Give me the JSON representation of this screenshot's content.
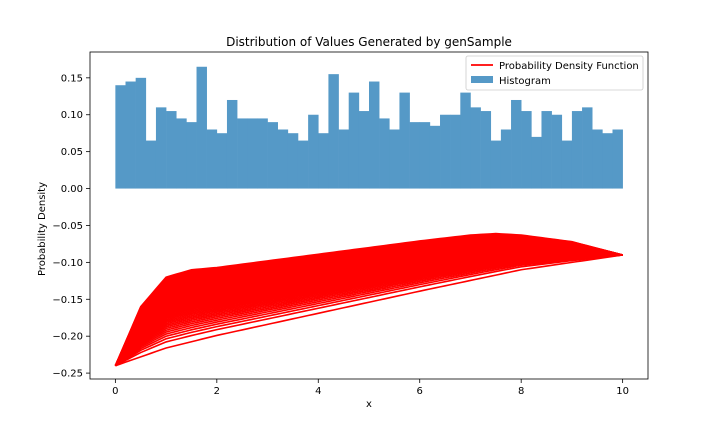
{
  "chart_data": {
    "type": "bar",
    "title": "Distribution of Values Generated by genSample",
    "xlabel": "x",
    "ylabel": "Probability Density",
    "xlim": [
      -0.5,
      10.5
    ],
    "ylim": [
      -0.258,
      0.185
    ],
    "xticks": [
      0,
      2,
      4,
      6,
      8,
      10
    ],
    "xtick_labels": [
      "0",
      "2",
      "4",
      "6",
      "8",
      "10"
    ],
    "yticks": [
      0.15,
      0.1,
      0.05,
      0.0,
      -0.05,
      -0.1,
      -0.15,
      -0.2,
      -0.25
    ],
    "ytick_labels": [
      "0.15",
      "0.10",
      "0.05",
      "0.00",
      "−0.05",
      "−0.10",
      "−0.15",
      "−0.20",
      "−0.25"
    ],
    "grid": false,
    "legend_position": "top-right",
    "legend": [
      {
        "label": "Probability Density Function",
        "kind": "line",
        "color": "#ff0000"
      },
      {
        "label": "Histogram",
        "kind": "patch",
        "color": "#5599c7"
      }
    ],
    "histogram": {
      "name": "Histogram",
      "color": "#5599c7",
      "bin_start": 0,
      "bin_width": 0.2,
      "values": [
        0.14,
        0.145,
        0.15,
        0.065,
        0.11,
        0.105,
        0.095,
        0.09,
        0.165,
        0.08,
        0.075,
        0.12,
        0.095,
        0.095,
        0.095,
        0.09,
        0.08,
        0.075,
        0.065,
        0.1,
        0.075,
        0.155,
        0.08,
        0.13,
        0.105,
        0.145,
        0.095,
        0.08,
        0.13,
        0.09,
        0.09,
        0.085,
        0.1,
        0.1,
        0.13,
        0.11,
        0.105,
        0.065,
        0.08,
        0.12,
        0.105,
        0.07,
        0.105,
        0.1,
        0.065,
        0.105,
        0.11,
        0.08,
        0.075,
        0.08
      ]
    },
    "pdf_curves": {
      "name": "Probability Density Function",
      "color": "#ff0000",
      "x_range": [
        0,
        10
      ],
      "start_y": -0.24,
      "end_y": -0.09,
      "upper_envelope": {
        "x": [
          0,
          0.5,
          1.0,
          1.5,
          2,
          3,
          4,
          5,
          6,
          7,
          7.5,
          8,
          9,
          10
        ],
        "y": [
          -0.24,
          -0.16,
          -0.12,
          -0.11,
          -0.107,
          -0.098,
          -0.089,
          -0.08,
          -0.071,
          -0.063,
          -0.061,
          -0.063,
          -0.072,
          -0.09
        ]
      },
      "lower_envelope": {
        "x": [
          0,
          1,
          2,
          4,
          6,
          8,
          10
        ],
        "y": [
          -0.24,
          -0.216,
          -0.199,
          -0.169,
          -0.139,
          -0.11,
          -0.09
        ]
      }
    }
  }
}
